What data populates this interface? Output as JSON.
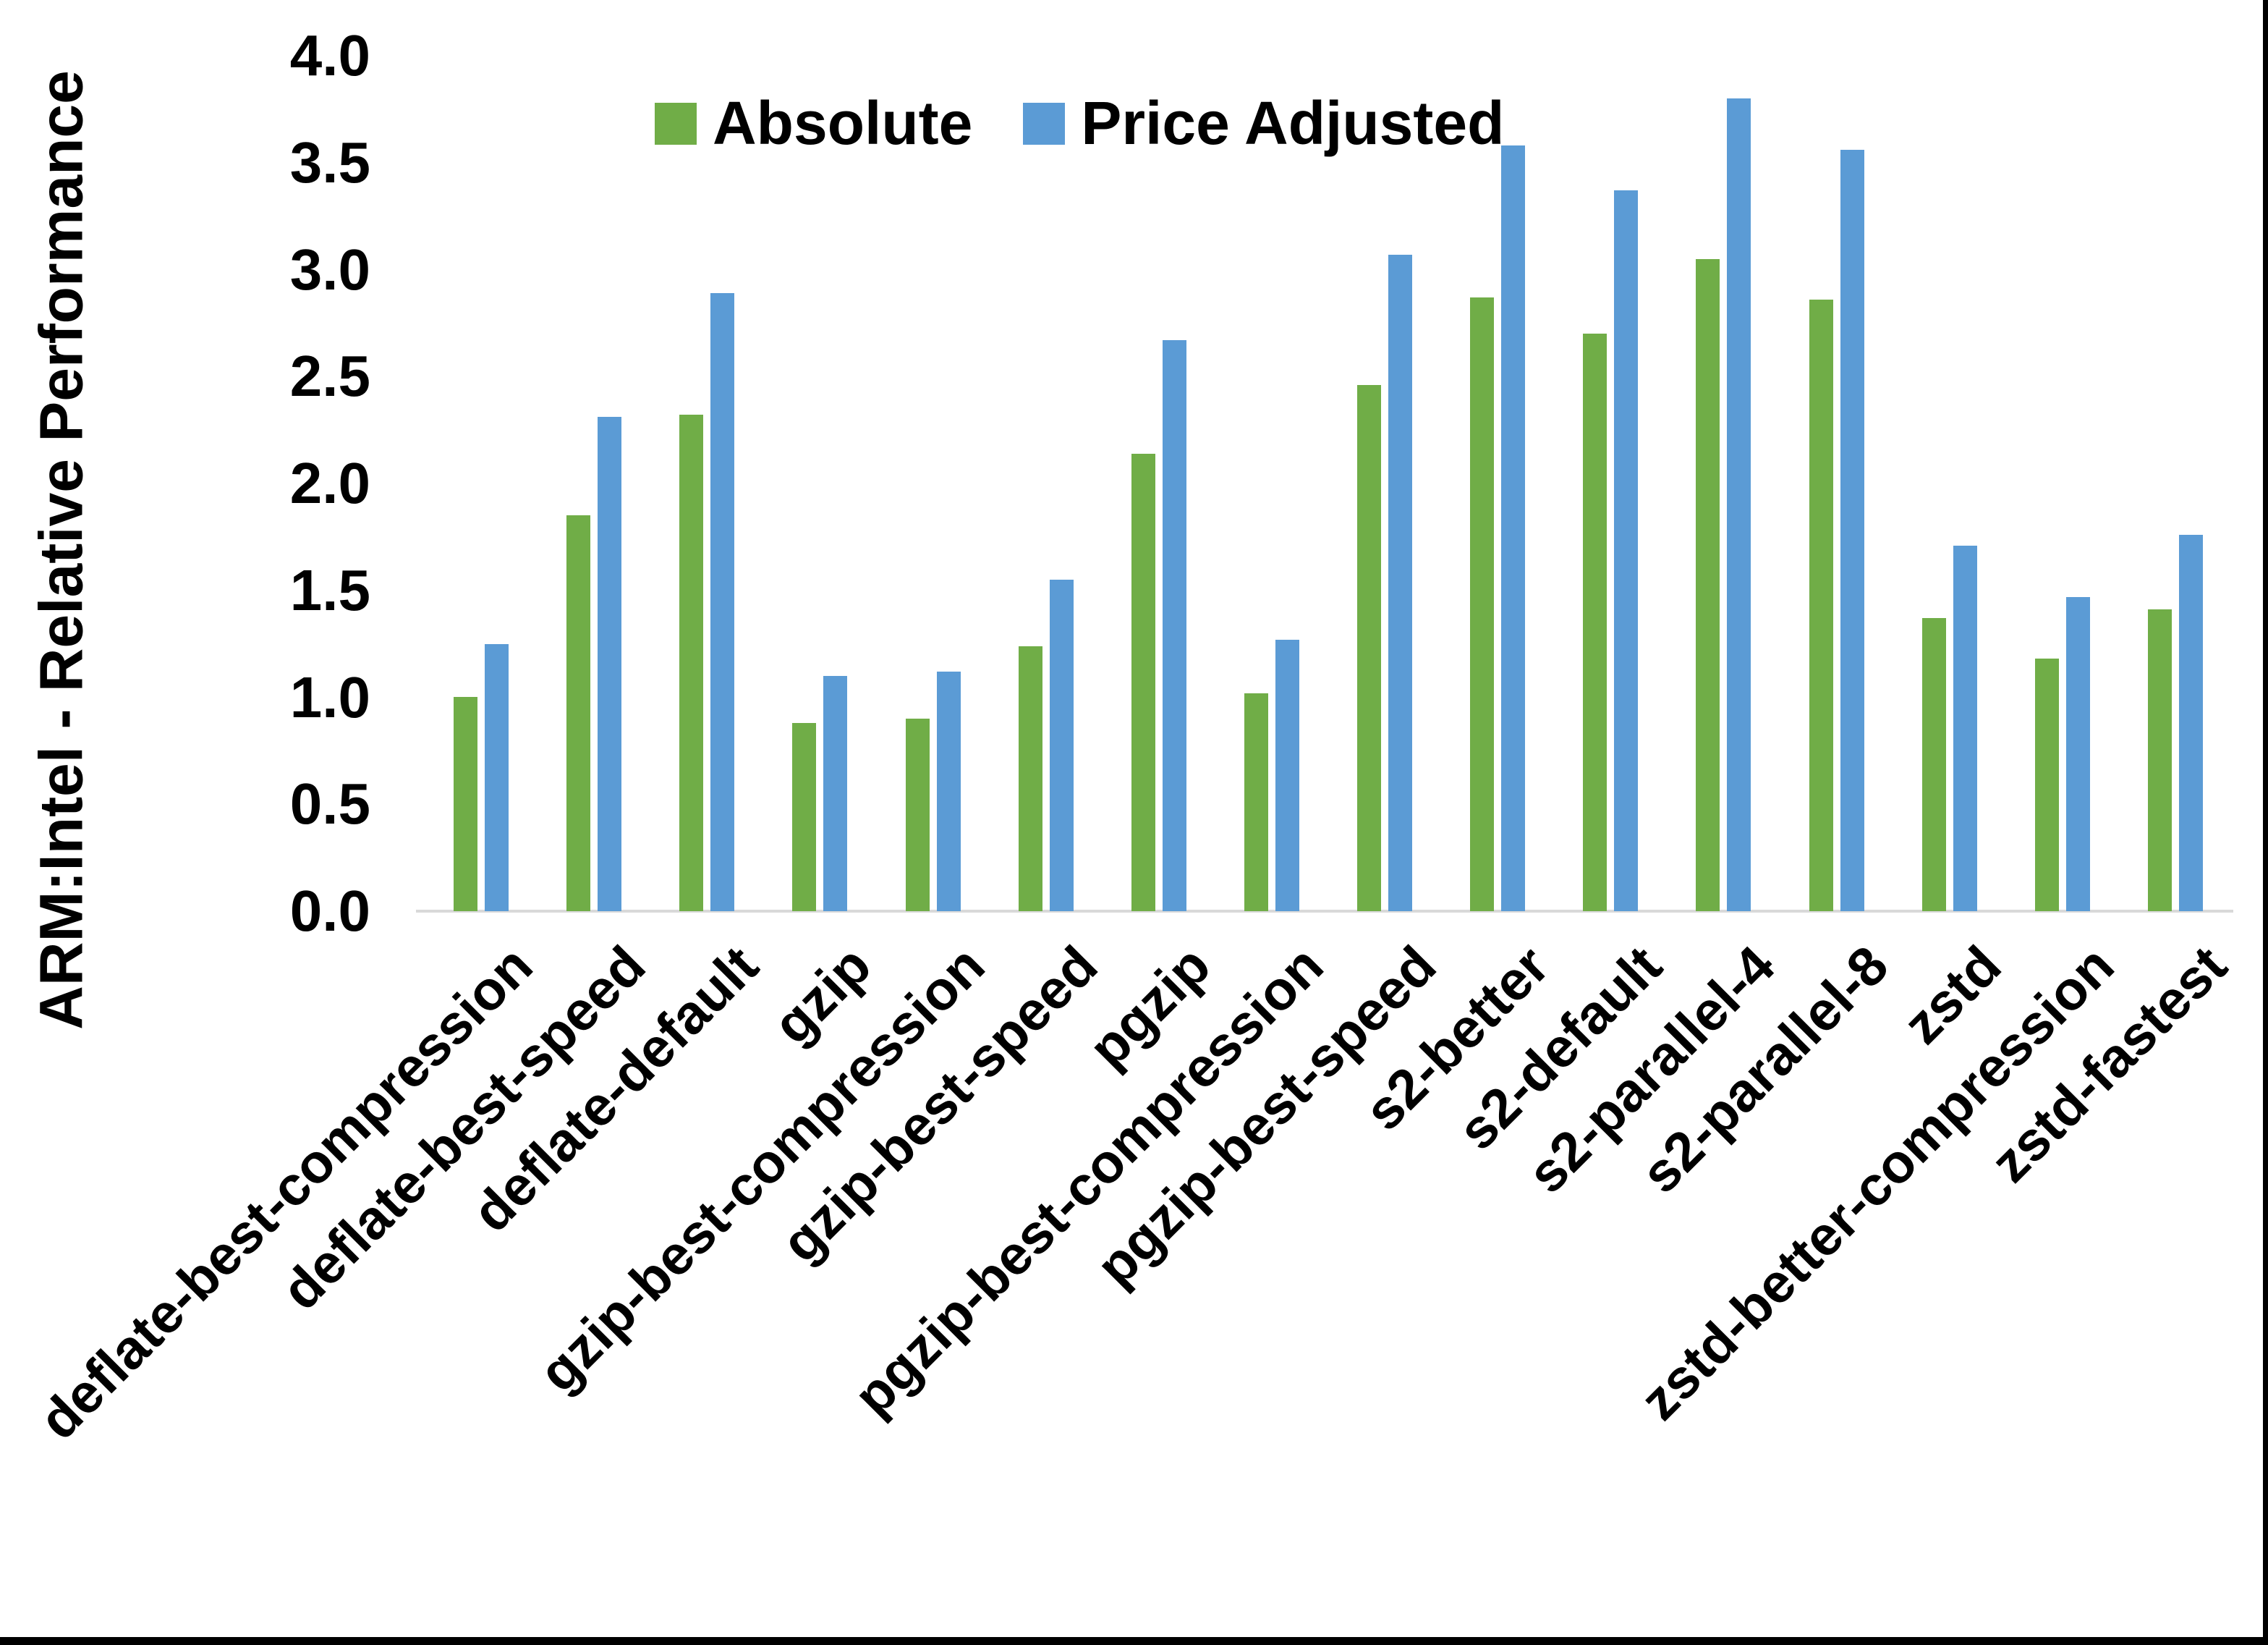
{
  "chart_data": {
    "type": "bar",
    "title": "",
    "ylabel": "ARM:Intel - Relative Performance",
    "xlabel": "",
    "ylim": [
      0,
      4
    ],
    "ytick_step": 0.5,
    "ytick_labels": [
      "0.0",
      "0.5",
      "1.0",
      "1.5",
      "2.0",
      "2.5",
      "3.0",
      "3.5",
      "4.0"
    ],
    "grid": false,
    "legend_position": "top-center",
    "categories": [
      "deflate-best-compression",
      "deflate-best-speed",
      "deflate-default",
      "gzip",
      "gzip-best-compression",
      "gzip-best-speed",
      "pgzip",
      "pgzip-best-compression",
      "pgzip-best-speed",
      "s2-better",
      "s2-default",
      "s2-parallel-4",
      "s2-parallel-8",
      "zstd",
      "zstd-better-compression",
      "zstd-fastest"
    ],
    "series": [
      {
        "name": "Absolute",
        "color": "#70AD47",
        "values": [
          1.0,
          1.85,
          2.32,
          0.88,
          0.9,
          1.24,
          2.14,
          1.02,
          2.46,
          2.87,
          2.7,
          3.05,
          2.86,
          1.37,
          1.18,
          1.41
        ]
      },
      {
        "name": "Price Adjusted",
        "color": "#5B9BD5",
        "values": [
          1.25,
          2.31,
          2.89,
          1.1,
          1.12,
          1.55,
          2.67,
          1.27,
          3.07,
          3.58,
          3.37,
          3.8,
          3.56,
          1.71,
          1.47,
          1.76
        ]
      }
    ]
  },
  "colors": {
    "background": "#FFFFFF",
    "axis_line": "#D9D9D9",
    "text": "#000000",
    "frame_border": "#000000"
  }
}
